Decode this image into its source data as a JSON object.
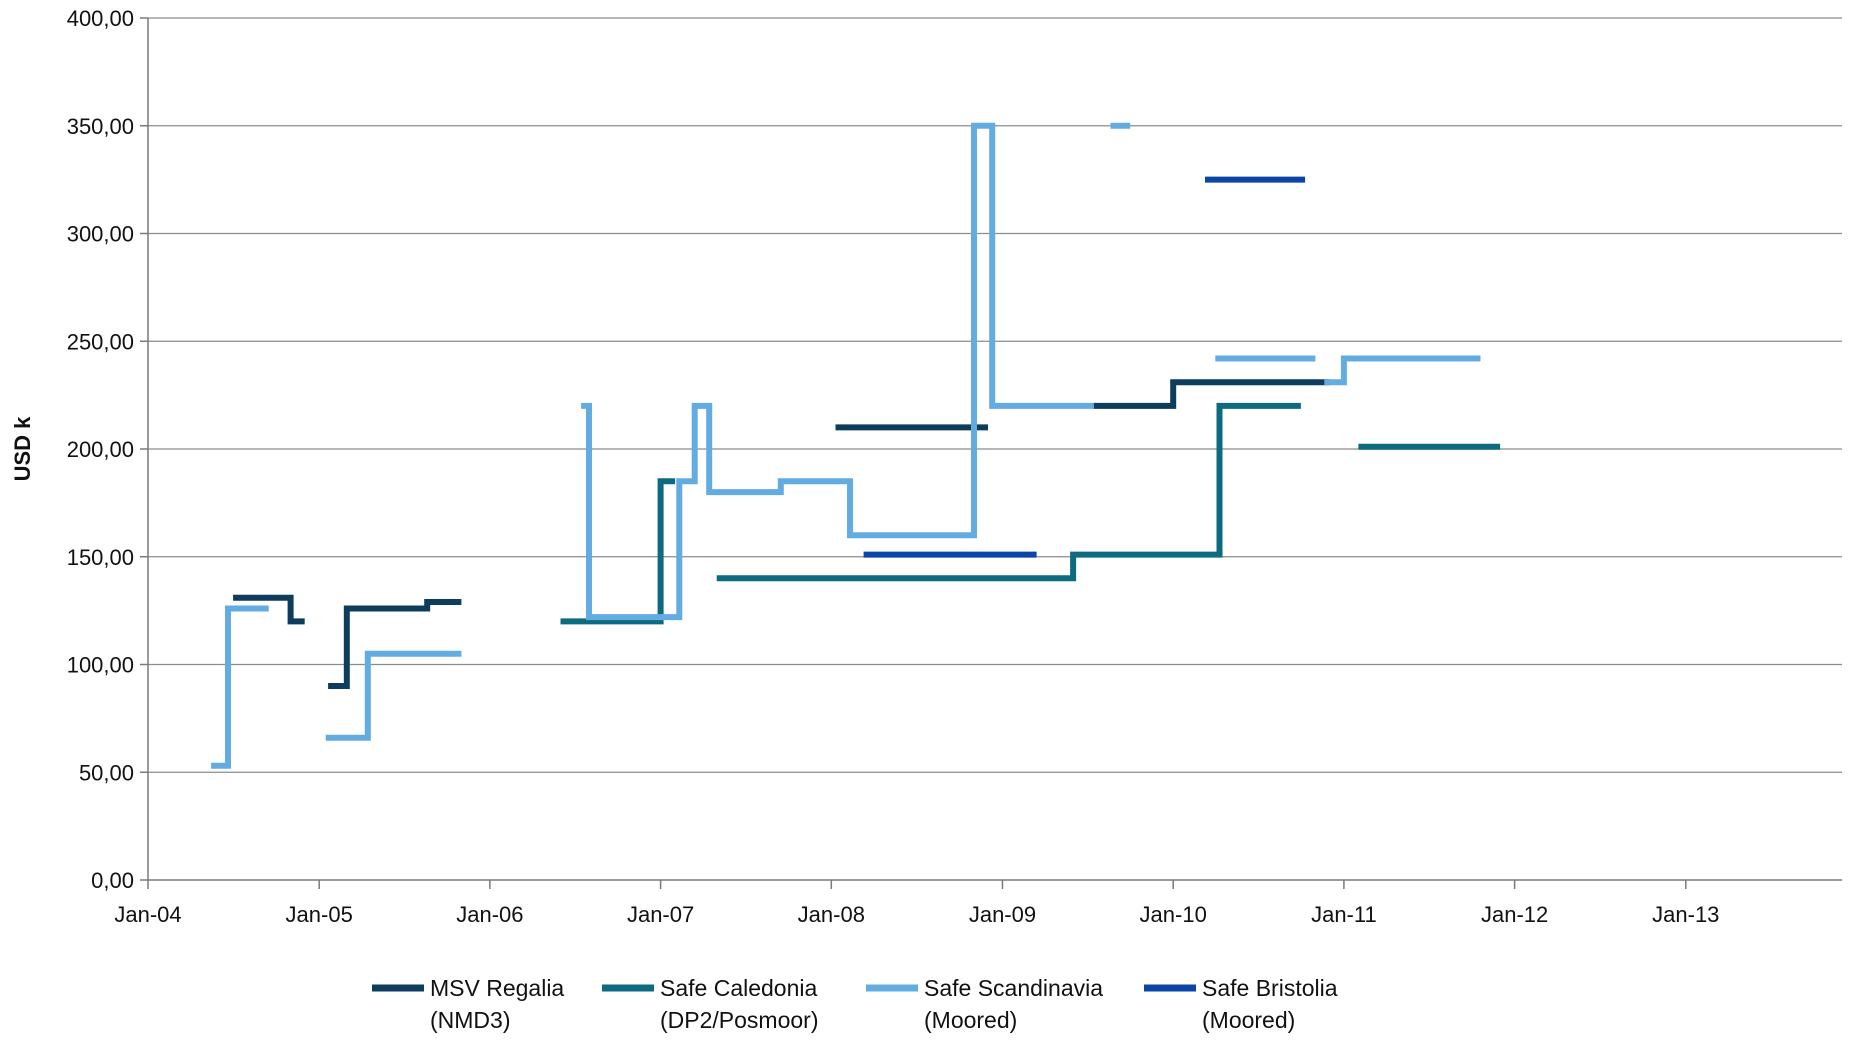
{
  "chart_data": {
    "type": "line",
    "title": "",
    "xlabel": "",
    "ylabel": "USD k",
    "ylim": [
      0,
      400
    ],
    "yticks": [
      "0,00",
      "50,00",
      "100,00",
      "150,00",
      "200,00",
      "250,00",
      "300,00",
      "350,00",
      "400,00"
    ],
    "xlim": [
      "2004-01-01",
      "2013-12-01"
    ],
    "xticks": [
      "Jan-04",
      "Jan-05",
      "Jan-06",
      "Jan-07",
      "Jan-08",
      "Jan-09",
      "Jan-10",
      "Jan-11",
      "Jan-12",
      "Jan-13"
    ],
    "grid": "horizontal",
    "legend": "bottom",
    "step": true,
    "series": [
      {
        "name": "MSV Regalia\n(NMD3)",
        "color": "#0d3c5c",
        "segments": [
          [
            [
              "2004-07-01",
              131
            ],
            [
              "2004-11-01",
              131
            ],
            [
              "2004-11-01",
              120
            ],
            [
              "2004-12-01",
              120
            ]
          ],
          [
            [
              "2005-01-20",
              90
            ],
            [
              "2005-03-01",
              90
            ],
            [
              "2005-03-01",
              126
            ],
            [
              "2005-08-20",
              126
            ],
            [
              "2005-08-20",
              129
            ],
            [
              "2005-11-01",
              129
            ]
          ],
          [
            [
              "2008-01-10",
              210
            ],
            [
              "2008-12-01",
              210
            ]
          ],
          [
            [
              "2009-07-15",
              220
            ],
            [
              "2010-01-01",
              220
            ],
            [
              "2010-01-01",
              231
            ],
            [
              "2010-12-01",
              231
            ]
          ]
        ]
      },
      {
        "name": "Safe Caledonia\n(DP2/Posmoor)",
        "color": "#0c6b80",
        "segments": [
          [
            [
              "2006-06-01",
              120
            ],
            [
              "2007-01-01",
              120
            ],
            [
              "2007-01-01",
              185
            ],
            [
              "2007-02-01",
              185
            ]
          ],
          [
            [
              "2007-05-01",
              140
            ],
            [
              "2009-06-01",
              140
            ],
            [
              "2009-06-01",
              151
            ],
            [
              "2010-04-10",
              151
            ],
            [
              "2010-04-10",
              220
            ],
            [
              "2010-10-01",
              220
            ]
          ],
          [
            [
              "2011-02-01",
              201
            ],
            [
              "2011-12-01",
              201
            ]
          ]
        ]
      },
      {
        "name": "Safe Scandinavia\n(Moored)",
        "color": "#63ace2",
        "segments": [
          [
            [
              "2004-05-15",
              53
            ],
            [
              "2004-06-20",
              53
            ],
            [
              "2004-06-20",
              126
            ],
            [
              "2004-09-15",
              126
            ]
          ],
          [
            [
              "2005-01-15",
              66
            ],
            [
              "2005-04-15",
              66
            ],
            [
              "2005-04-15",
              105
            ],
            [
              "2005-11-01",
              105
            ]
          ],
          [
            [
              "2006-07-15",
              220
            ],
            [
              "2006-08-01",
              220
            ],
            [
              "2006-08-01",
              122
            ],
            [
              "2007-02-10",
              122
            ],
            [
              "2007-02-10",
              185
            ],
            [
              "2007-03-15",
              185
            ],
            [
              "2007-03-15",
              220
            ],
            [
              "2007-04-15",
              220
            ],
            [
              "2007-04-15",
              180
            ],
            [
              "2007-09-15",
              180
            ],
            [
              "2007-09-15",
              185
            ],
            [
              "2008-02-10",
              185
            ],
            [
              "2008-02-10",
              160
            ],
            [
              "2008-11-01",
              160
            ],
            [
              "2008-11-01",
              350
            ],
            [
              "2008-12-10",
              350
            ],
            [
              "2008-12-10",
              220
            ],
            [
              "2009-07-15",
              220
            ]
          ],
          [
            [
              "2009-08-20",
              350
            ],
            [
              "2009-10-01",
              350
            ]
          ],
          [
            [
              "2010-04-01",
              242
            ],
            [
              "2010-11-01",
              242
            ]
          ],
          [
            [
              "2010-11-20",
              231
            ],
            [
              "2011-01-01",
              231
            ],
            [
              "2011-01-01",
              242
            ],
            [
              "2011-10-20",
              242
            ]
          ]
        ]
      },
      {
        "name": "Safe Bristolia\n(Moored)",
        "color": "#0b45a6",
        "segments": [
          [
            [
              "2008-03-10",
              151
            ],
            [
              "2009-03-15",
              151
            ]
          ],
          [
            [
              "2010-03-10",
              325
            ],
            [
              "2010-10-10",
              325
            ]
          ]
        ]
      }
    ]
  }
}
